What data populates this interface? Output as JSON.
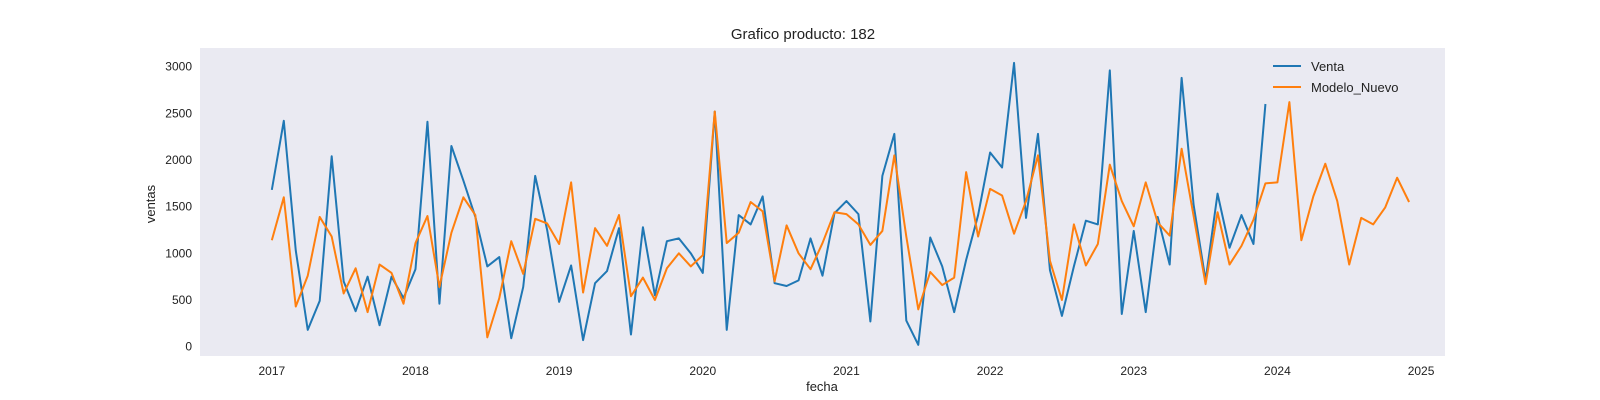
{
  "chart_data": {
    "type": "line",
    "title": "Grafico producto: 182",
    "xlabel": "fecha",
    "ylabel": "ventas",
    "xlim": [
      "2016-07",
      "2025-03"
    ],
    "ylim": [
      -100,
      3200
    ],
    "x_ticks": [
      "2017",
      "2018",
      "2019",
      "2020",
      "2021",
      "2022",
      "2023",
      "2024",
      "2025"
    ],
    "y_ticks": [
      0,
      500,
      1000,
      1500,
      2000,
      2500,
      3000
    ],
    "grid": false,
    "background": "#eaeaf2",
    "legend_position": "top-right",
    "series": [
      {
        "name": "Venta",
        "color": "#1f77b4",
        "start": "2017-01",
        "values": [
          1680,
          2420,
          1030,
          180,
          490,
          2040,
          700,
          380,
          750,
          230,
          750,
          520,
          830,
          2410,
          460,
          2150,
          1780,
          1390,
          860,
          960,
          90,
          640,
          1830,
          1250,
          480,
          870,
          70,
          680,
          810,
          1270,
          130,
          1280,
          550,
          1130,
          1160,
          1000,
          790,
          2520,
          180,
          1410,
          1310,
          1610,
          680,
          650,
          710,
          1160,
          760,
          1430,
          1560,
          1420,
          270,
          1830,
          2280,
          280,
          20,
          1170,
          860,
          370,
          930,
          1410,
          2080,
          1920,
          3040,
          1380,
          2280,
          820,
          330,
          860,
          1350,
          1310,
          2960,
          350,
          1240,
          370,
          1390,
          880,
          2880,
          1520,
          710,
          1640,
          1060,
          1410,
          1100,
          2600
        ]
      },
      {
        "name": "Modelo_Nuevo",
        "color": "#ff7f0e",
        "start": "2017-01",
        "values": [
          1140,
          1600,
          430,
          760,
          1390,
          1180,
          570,
          840,
          370,
          880,
          790,
          460,
          1110,
          1400,
          640,
          1220,
          1600,
          1410,
          100,
          520,
          1130,
          780,
          1370,
          1320,
          1100,
          1760,
          580,
          1270,
          1080,
          1410,
          540,
          740,
          500,
          840,
          1000,
          860,
          980,
          2520,
          1110,
          1220,
          1550,
          1450,
          700,
          1300,
          1000,
          830,
          1110,
          1440,
          1420,
          1310,
          1090,
          1240,
          2050,
          1180,
          400,
          800,
          660,
          740,
          1870,
          1180,
          1690,
          1620,
          1210,
          1560,
          2050,
          920,
          500,
          1310,
          870,
          1100,
          1950,
          1560,
          1290,
          1760,
          1330,
          1190,
          2120,
          1400,
          670,
          1440,
          880,
          1080,
          1360,
          1750,
          1760,
          2620,
          1140,
          1610,
          1960,
          1560,
          880,
          1380,
          1310,
          1490,
          1810,
          1550
        ]
      }
    ]
  }
}
